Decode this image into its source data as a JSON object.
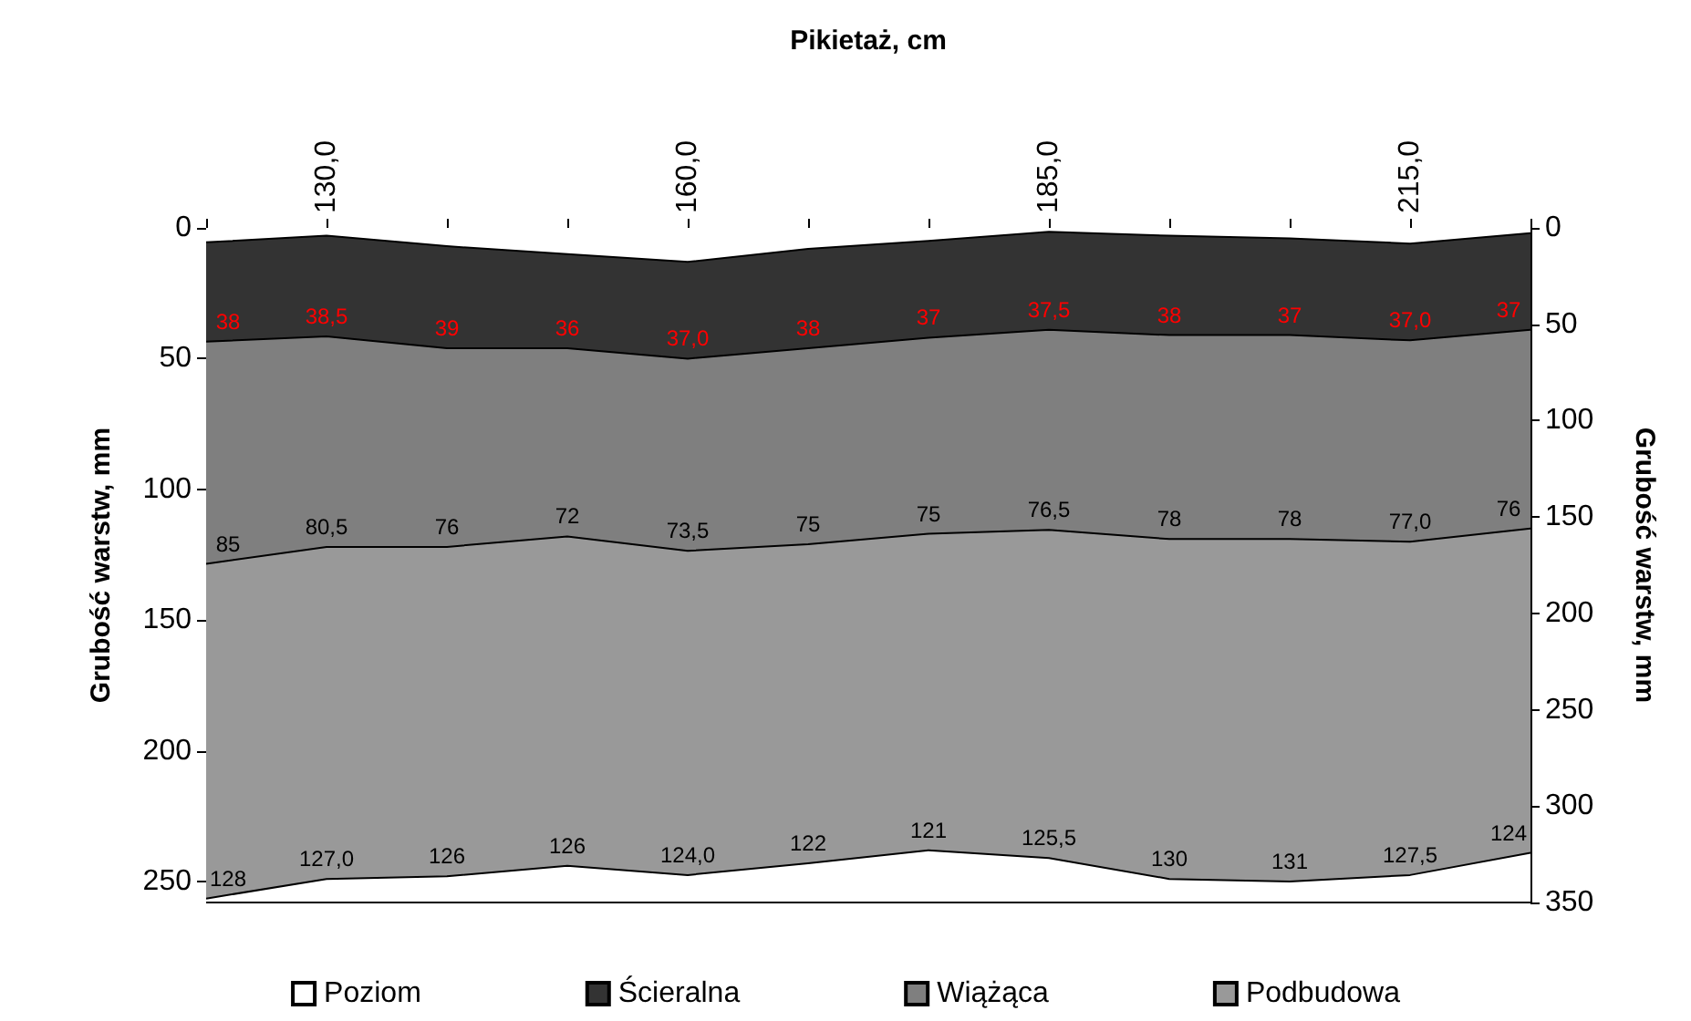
{
  "chart_data": {
    "type": "area",
    "stacked": true,
    "xlabel": "Pikietaż, cm",
    "ylabel": "Grubość warstw, mm",
    "y2label": "Grubość warstw, mm",
    "categories": [
      null,
      "130,0",
      null,
      null,
      "160,0",
      null,
      null,
      "185,0",
      null,
      null,
      "215,0",
      null
    ],
    "series": [
      {
        "name": "Poziom",
        "color": "#ffffff",
        "values": [
          5.5,
          3,
          7,
          10,
          13,
          8,
          5,
          1.5,
          3,
          4,
          6,
          2
        ]
      },
      {
        "name": "Ścieralna",
        "color": "#333333",
        "values": [
          38,
          38.5,
          39,
          36,
          37,
          38,
          37,
          37.5,
          38,
          37,
          37,
          37
        ],
        "value_labels": [
          "38",
          "38,5",
          "39",
          "36",
          "37,0",
          "38",
          "37",
          "37,5",
          "38",
          "37",
          "37,0",
          "37"
        ]
      },
      {
        "name": "Wiążąca",
        "color": "#7f7f7f",
        "values": [
          85,
          80.5,
          76,
          72,
          73.5,
          75,
          75,
          76.5,
          78,
          78,
          77,
          76
        ],
        "value_labels": [
          "85",
          "80,5",
          "76",
          "72",
          "73,5",
          "75",
          "75",
          "76,5",
          "78",
          "78",
          "77,0",
          "76"
        ]
      },
      {
        "name": "Podbudowa",
        "color": "#999999",
        "values": [
          128,
          127,
          126,
          126,
          124,
          122,
          121,
          125.5,
          130,
          131,
          127.5,
          124
        ],
        "value_labels": [
          "128",
          "127,0",
          "126",
          "126",
          "124,0",
          "122",
          "121",
          "125,5",
          "130",
          "131",
          "127,5",
          "124"
        ]
      },
      {
        "color": "#ffffff",
        "values": [
          1.5,
          9,
          10,
          14,
          10.5,
          15,
          20,
          17,
          9,
          8,
          10.5,
          19
        ]
      }
    ],
    "ylim": [
      258,
      0
    ],
    "yticks": [
      0,
      50,
      100,
      150,
      200,
      250
    ],
    "y2lim": [
      350,
      0
    ],
    "y2ticks": [
      0,
      50,
      100,
      150,
      200,
      250,
      300,
      350
    ],
    "legend": "bottom"
  }
}
